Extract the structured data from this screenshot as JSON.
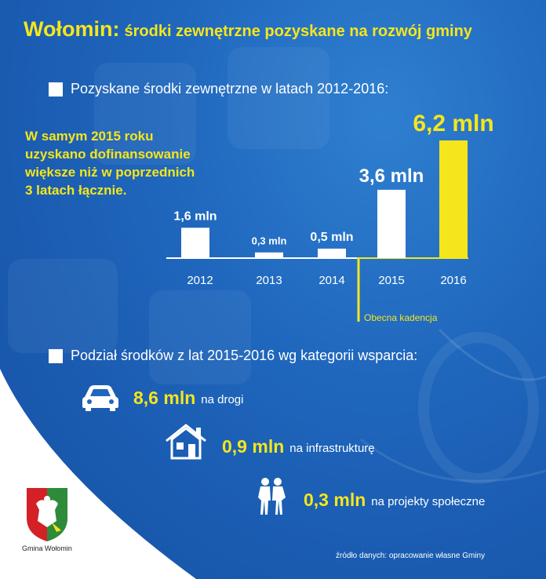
{
  "header": {
    "title_main": "Wołomin:",
    "title_sub": "środki zewnętrzne pozyskane na rozwój gminy"
  },
  "section1": {
    "heading": "Pozyskane środki zewnętrzne w latach 2012-2016:"
  },
  "note": {
    "lines": [
      "W samym 2015 roku",
      "uzyskano dofinansowanie",
      "większe niż  w poprzednich",
      "3 latach łącznie."
    ]
  },
  "chart_data": {
    "type": "bar",
    "categories": [
      "2012",
      "2013",
      "2014",
      "2015",
      "2016"
    ],
    "values": [
      1.6,
      0.3,
      0.5,
      3.6,
      6.2
    ],
    "value_labels": [
      "1,6 mln",
      "0,3 mln",
      "0,5 mln",
      "3,6 mln",
      "6,2 mln"
    ],
    "unit": "mln",
    "annotation": "Obecna kadencja",
    "bar_colors": [
      "#ffffff",
      "#ffffff",
      "#ffffff",
      "#ffffff",
      "#f5e61c"
    ],
    "ylim": [
      0,
      6.2
    ]
  },
  "section2": {
    "heading": "Podział środków z lat 2015-2016  wg kategorii wsparcia:"
  },
  "categories_support": [
    {
      "value": "8,6 mln",
      "label": "na drogi",
      "icon": "car-icon"
    },
    {
      "value": "0,9 mln",
      "label": "na infrastrukturę",
      "icon": "house-icon"
    },
    {
      "value": "0,3 mln",
      "label": "na projekty społeczne",
      "icon": "people-icon"
    }
  ],
  "footer": {
    "crest_label": "Gmina Wołomin",
    "source": "źródło danych: opracowanie własne Gminy"
  },
  "colors": {
    "accent_yellow": "#f5e61c",
    "background_blue": "#1f67bd",
    "text_white": "#ffffff"
  }
}
